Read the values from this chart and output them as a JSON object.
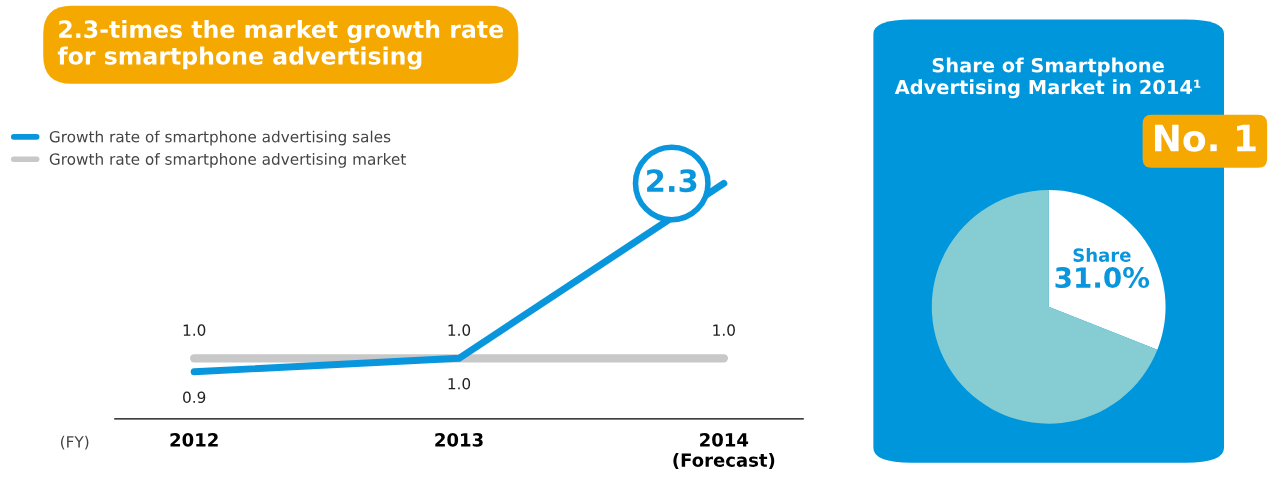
{
  "chart_data": [
    {
      "type": "line",
      "title": "2.3-times the market growth rate\nfor smartphone advertising",
      "xlabel": "(FY)",
      "categories": [
        "2012",
        "2013",
        "2014\n(Forecast)"
      ],
      "series": [
        {
          "name": "Growth rate of smartphone advertising sales",
          "color": "#0a96dc",
          "values": [
            0.9,
            1.0,
            2.3
          ],
          "value_labels": [
            "0.9",
            "1.0",
            "2.3"
          ]
        },
        {
          "name": "Growth rate of smartphone advertising market",
          "color": "#c8c8c8",
          "values": [
            1.0,
            1.0,
            1.0
          ],
          "value_labels": [
            "1.0",
            "1.0",
            "1.0"
          ]
        }
      ],
      "legend": "top left",
      "grid": false,
      "marker": "none",
      "line_style": "solid"
    },
    {
      "type": "pie",
      "title": "Share of Smartphone\nAdvertising Market in 2014¹",
      "categories": [
        "Share",
        null
      ],
      "values": [
        31.0,
        69.0
      ],
      "colors": [
        "#ffffff",
        "#85cdd3"
      ],
      "value_labels": [
        "31.0%",
        null
      ],
      "annotations": [
        "No. 1"
      ]
    }
  ]
}
